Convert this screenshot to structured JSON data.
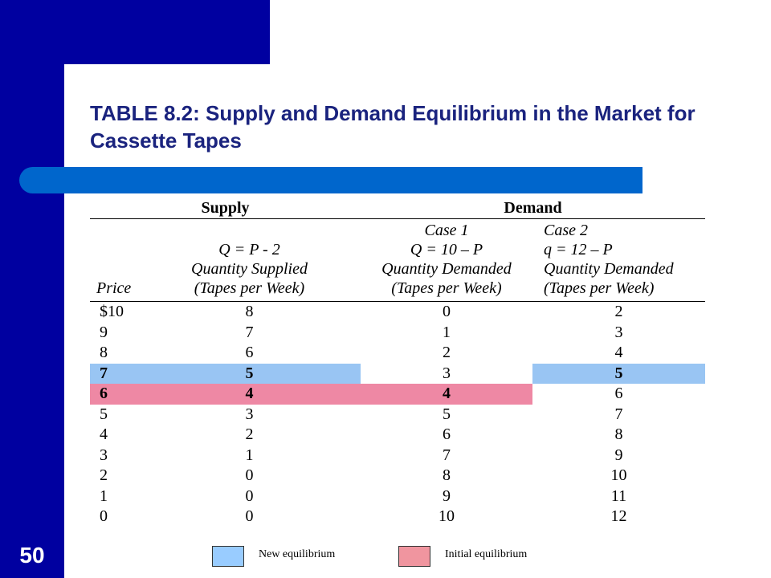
{
  "slide_number": "50",
  "title": "TABLE 8.2: Supply and Demand Equilibrium in the Market for Cassette Tapes",
  "table": {
    "group_headers": {
      "supply": "Supply",
      "demand": "Demand"
    },
    "column_headers": {
      "price": "Price",
      "supply": [
        "Q = P - 2",
        "Quantity Supplied",
        "(Tapes per Week)"
      ],
      "case1": [
        "Case 1",
        "Q = 10 – P",
        "Quantity Demanded",
        "(Tapes per Week)"
      ],
      "case2": [
        "Case 2",
        "q = 12 – P",
        "Quantity Demanded",
        "(Tapes per Week)"
      ]
    },
    "rows": [
      {
        "price": "$10",
        "supply": "8",
        "case1": "0",
        "case2": "2"
      },
      {
        "price": "9",
        "supply": "7",
        "case1": "1",
        "case2": "3"
      },
      {
        "price": "8",
        "supply": "6",
        "case1": "2",
        "case2": "4"
      },
      {
        "price": "7",
        "supply": "5",
        "case1": "3",
        "case2": "5",
        "highlight": "new"
      },
      {
        "price": "6",
        "supply": "4",
        "case1": "4",
        "case2": "6",
        "highlight": "initial"
      },
      {
        "price": "5",
        "supply": "3",
        "case1": "5",
        "case2": "7"
      },
      {
        "price": "4",
        "supply": "2",
        "case1": "6",
        "case2": "8"
      },
      {
        "price": "3",
        "supply": "1",
        "case1": "7",
        "case2": "9"
      },
      {
        "price": "2",
        "supply": "0",
        "case1": "8",
        "case2": "10"
      },
      {
        "price": "1",
        "supply": "0",
        "case1": "9",
        "case2": "11"
      },
      {
        "price": "0",
        "supply": "0",
        "case1": "10",
        "case2": "12"
      }
    ]
  },
  "legend": {
    "new": {
      "label": "New equilibrium",
      "color": "#99ccff"
    },
    "initial": {
      "label": "Initial equilibrium",
      "color": "#f0959f"
    }
  },
  "colors": {
    "frame": "#0000a0",
    "title": "#1a237e",
    "title_bar": "#0066cc",
    "highlight_new": "#99c5f3",
    "highlight_initial": "#ee88a4"
  }
}
